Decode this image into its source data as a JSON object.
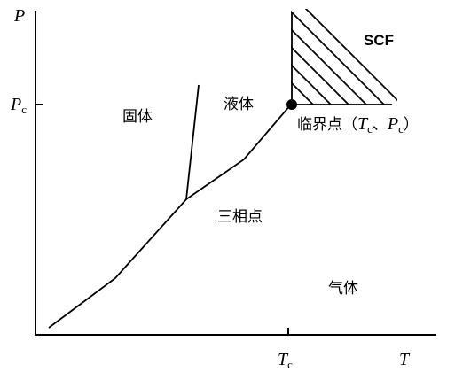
{
  "axes": {
    "y_label": "P",
    "x_label": "T",
    "y_mark": {
      "symbol": "P",
      "subscript": "c"
    },
    "x_mark": {
      "symbol": "T",
      "subscript": "c"
    }
  },
  "regions": {
    "solid": "固体",
    "liquid": "液体",
    "gas": "气体",
    "scf": "SCF"
  },
  "points": {
    "triple": "三相点",
    "critical": {
      "prefix": "临界点（",
      "t": "T",
      "t_sub": "c",
      "sep": "、",
      "p": "P",
      "p_sub": "c",
      "suffix": "）"
    }
  }
}
